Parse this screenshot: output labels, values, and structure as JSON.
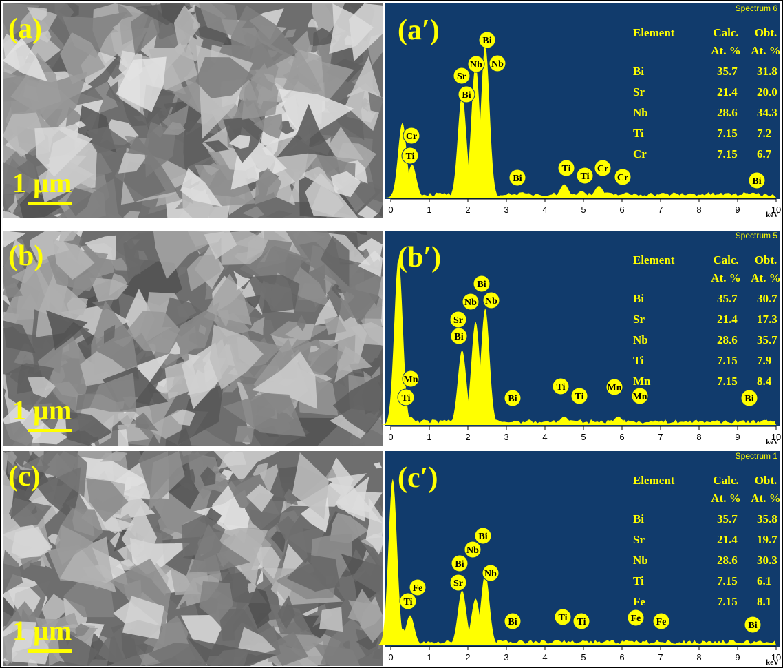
{
  "panels": [
    {
      "sem": {
        "label": "(a)",
        "scale_bar": "1 µm"
      },
      "eds": {
        "label": "(a′)",
        "spectrum_name": "Spectrum 6",
        "table": {
          "header": [
            "Element",
            "Calc.",
            "Obt."
          ],
          "subheader": [
            "At. %",
            "At. %"
          ],
          "rows": [
            [
              "Bi",
              "35.7",
              "31.8"
            ],
            [
              "Sr",
              "21.4",
              "20.0"
            ],
            [
              "Nb",
              "28.6",
              "34.3"
            ],
            [
              "Ti",
              "7.15",
              "7.2"
            ],
            [
              "Cr",
              "7.15",
              "6.7"
            ]
          ]
        },
        "peak_labels": [
          "Cr",
          "Ti",
          "Sr",
          "Bi",
          "Nb",
          "Bi",
          "Nb",
          "Bi",
          "Ti",
          "Ti",
          "Cr",
          "Cr",
          "Bi"
        ],
        "xlim": [
          0,
          10
        ],
        "xticks": [
          0,
          1,
          2,
          3,
          4,
          5,
          6,
          7,
          8,
          9,
          10
        ],
        "xlabel": "keV",
        "ylim": [
          0,
          1
        ],
        "peaks": [
          {
            "x": 0.3,
            "height": 0.45
          },
          {
            "x": 0.55,
            "height": 0.2
          },
          {
            "x": 1.85,
            "height": 0.62
          },
          {
            "x": 2.2,
            "height": 0.8
          },
          {
            "x": 2.45,
            "height": 0.92
          },
          {
            "x": 3.2,
            "height": 0.02
          },
          {
            "x": 4.5,
            "height": 0.08
          },
          {
            "x": 4.95,
            "height": 0.04
          },
          {
            "x": 5.4,
            "height": 0.07
          },
          {
            "x": 9.4,
            "height": 0.03
          }
        ]
      }
    },
    {
      "sem": {
        "label": "(b)",
        "scale_bar": "1 µm"
      },
      "eds": {
        "label": "(b′)",
        "spectrum_name": "Spectrum 5",
        "table": {
          "header": [
            "Element",
            "Calc.",
            "Obt."
          ],
          "subheader": [
            "At. %",
            "At. %"
          ],
          "rows": [
            [
              "Bi",
              "35.7",
              "30.7"
            ],
            [
              "Sr",
              "21.4",
              "17.3"
            ],
            [
              "Nb",
              "28.6",
              "35.7"
            ],
            [
              "Ti",
              "7.15",
              "7.9"
            ],
            [
              "Mn",
              "7.15",
              "8.4"
            ]
          ]
        },
        "peak_labels": [
          "Mn",
          "Ti",
          "Sr",
          "Bi",
          "Nb",
          "Bi",
          "Nb",
          "Bi",
          "Ti",
          "Ti",
          "Mn",
          "Mn",
          "Bi"
        ],
        "xlim": [
          0,
          10
        ],
        "xticks": [
          0,
          1,
          2,
          3,
          4,
          5,
          6,
          7,
          8,
          9,
          10
        ],
        "xlabel": "keV",
        "ylim": [
          0,
          1
        ],
        "peaks": [
          {
            "x": 0.2,
            "height": 1.0
          },
          {
            "x": 0.5,
            "height": 0.05
          },
          {
            "x": 1.85,
            "height": 0.45
          },
          {
            "x": 2.2,
            "height": 0.62
          },
          {
            "x": 2.45,
            "height": 0.7
          },
          {
            "x": 4.5,
            "height": 0.05
          },
          {
            "x": 5.9,
            "height": 0.05
          },
          {
            "x": 9.7,
            "height": 0.03
          }
        ]
      }
    },
    {
      "sem": {
        "label": "(c)",
        "scale_bar": "1 µm"
      },
      "eds": {
        "label": "(c′)",
        "spectrum_name": "Spectrum 1",
        "table": {
          "header": [
            "Element",
            "Calc.",
            "Obt."
          ],
          "subheader": [
            "At. %",
            "At. %"
          ],
          "rows": [
            [
              "Bi",
              "35.7",
              "35.8"
            ],
            [
              "Sr",
              "21.4",
              "19.7"
            ],
            [
              "Nb",
              "28.6",
              "30.3"
            ],
            [
              "Ti",
              "7.15",
              "6.1"
            ],
            [
              "Fe",
              "7.15",
              "8.1"
            ]
          ]
        },
        "peak_labels": [
          "Fe",
          "Ti",
          "Bi",
          "Sr",
          "Nb",
          "Bi",
          "Nb",
          "Bi",
          "Ti",
          "Ti",
          "Fe",
          "Fe",
          "Bi"
        ],
        "xlim": [
          0,
          10
        ],
        "xticks": [
          0,
          1,
          2,
          3,
          4,
          5,
          6,
          7,
          8,
          9,
          10
        ],
        "xlabel": "keV",
        "ylim": [
          0,
          1
        ],
        "peaks": [
          {
            "x": 0.05,
            "height": 1.0
          },
          {
            "x": 0.3,
            "height": 0.1
          },
          {
            "x": 0.5,
            "height": 0.18
          },
          {
            "x": 1.85,
            "height": 0.33
          },
          {
            "x": 2.2,
            "height": 0.28
          },
          {
            "x": 2.45,
            "height": 0.43
          },
          {
            "x": 4.5,
            "height": 0.02
          },
          {
            "x": 6.4,
            "height": 0.02
          }
        ]
      }
    }
  ]
}
